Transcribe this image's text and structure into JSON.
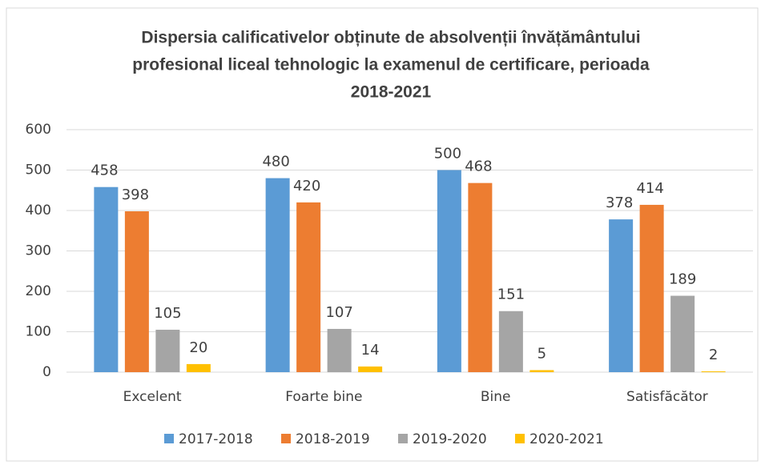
{
  "chart_data": {
    "type": "bar",
    "title": [
      "Dispersia calificativelor obținute de absolvenții învățământului",
      "profesional liceal tehnologic la examenul de certificare, perioada",
      "2018-2021"
    ],
    "categories": [
      "Excelent",
      "Foarte bine",
      "Bine",
      "Satisfăcător"
    ],
    "series": [
      {
        "name": "2017-2018",
        "color": "#5b9bd5",
        "values": [
          458,
          480,
          500,
          378
        ]
      },
      {
        "name": "2018-2019",
        "color": "#ed7d31",
        "values": [
          398,
          420,
          468,
          414
        ]
      },
      {
        "name": "2019-2020",
        "color": "#a5a5a5",
        "values": [
          105,
          107,
          151,
          189
        ]
      },
      {
        "name": "2020-2021",
        "color": "#ffc000",
        "values": [
          20,
          14,
          5,
          2
        ]
      }
    ],
    "ylim": [
      0,
      600
    ],
    "yticks": [
      0,
      100,
      200,
      300,
      400,
      500,
      600
    ],
    "grid": true,
    "legend": "bottom"
  }
}
